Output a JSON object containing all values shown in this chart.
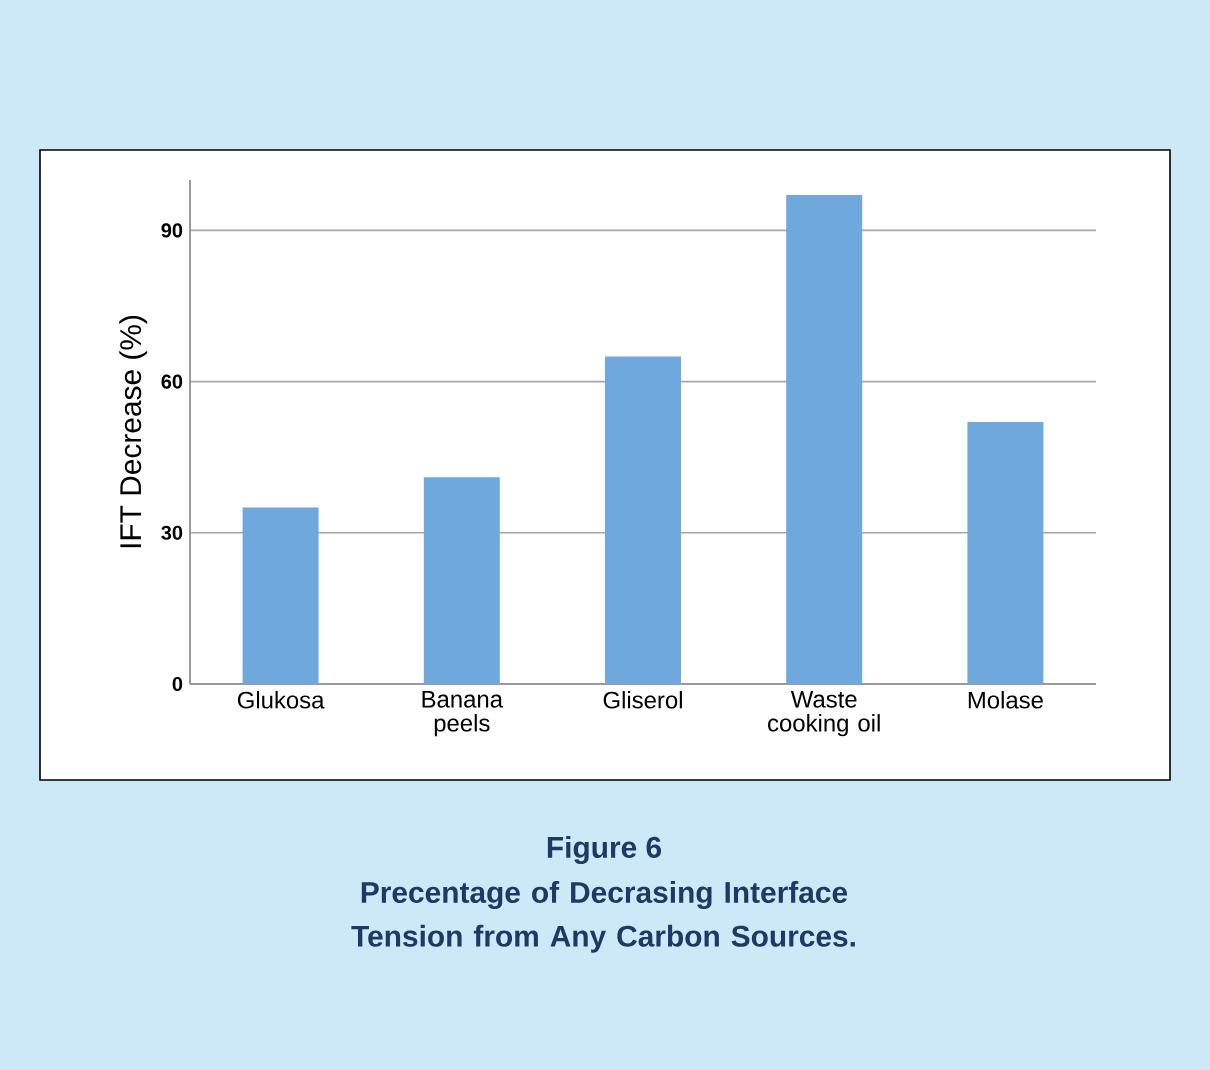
{
  "chart_data": {
    "type": "bar",
    "title": "Figure 6",
    "subtitle": "Precentage of Decrasing Interface Tension from Any Carbon Sources.",
    "ylabel": "IFT Decrease (%)",
    "categories": [
      "Glukosa",
      "Banana peels",
      "Gliserol",
      "Waste cooking oil",
      "Molase"
    ],
    "values": [
      35,
      41,
      65,
      97,
      52
    ],
    "color": "#6fa8dc",
    "ylim": [
      0,
      100
    ],
    "yticks": [
      0,
      30,
      60,
      90
    ],
    "grid": "y"
  }
}
